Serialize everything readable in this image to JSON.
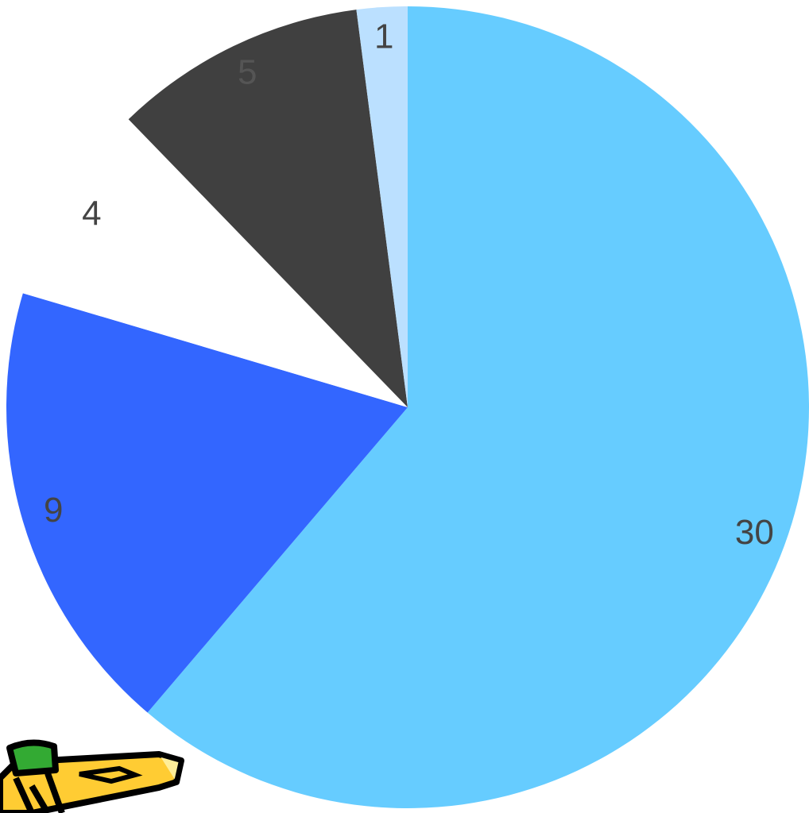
{
  "chart_data": {
    "type": "pie",
    "values": [
      30,
      9,
      4,
      5,
      1
    ],
    "colors": [
      "#66ccff",
      "#3366ff",
      "#ffffff",
      "#404040",
      "#bbe0ff"
    ],
    "start_angle": 0,
    "direction": "clockwise"
  }
}
